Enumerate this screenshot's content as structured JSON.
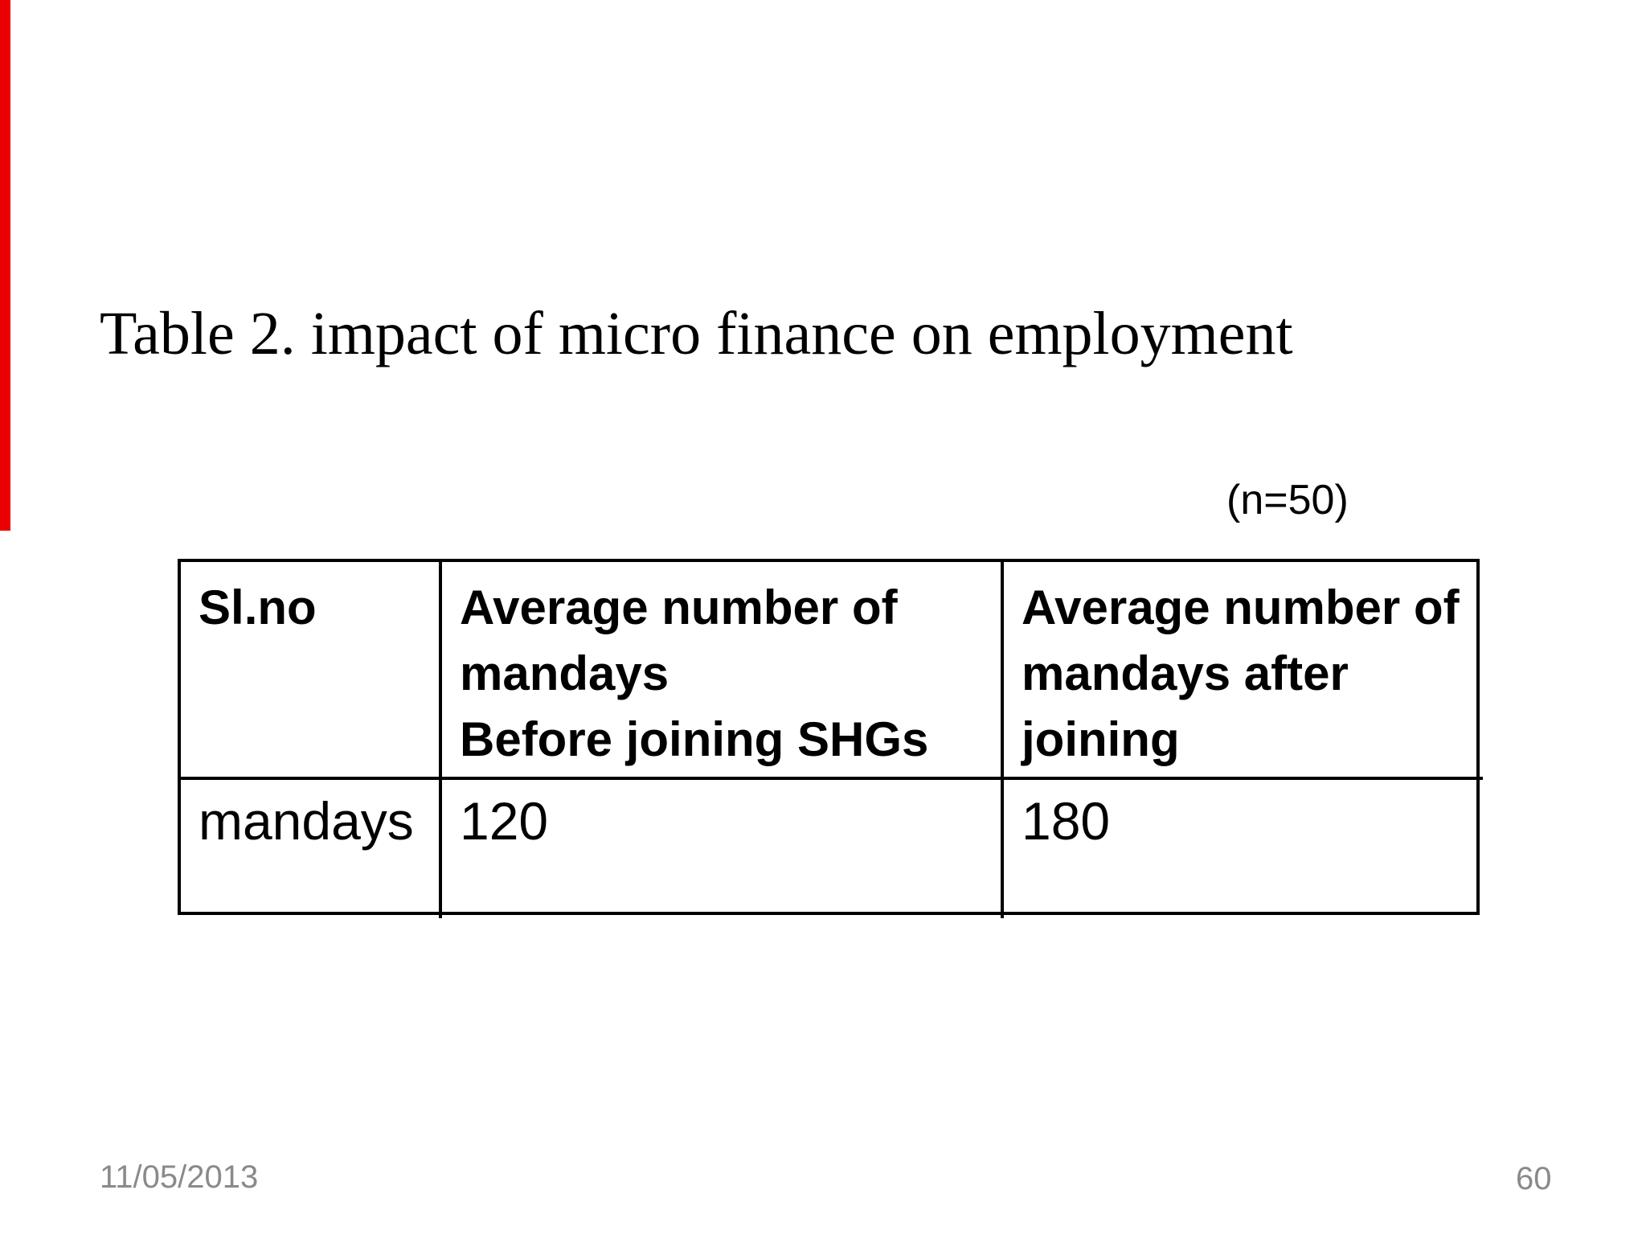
{
  "slide": {
    "title": "Table 2. impact of micro finance on employment",
    "sample_note": "(n=50)",
    "table": {
      "headers": [
        "Sl.no",
        "Average number of\nmandays\nBefore joining SHGs",
        "Average number of\nmandays after\njoining"
      ],
      "rows": [
        [
          "mandays",
          "120",
          "180"
        ]
      ]
    },
    "footer": {
      "date": "11/05/2013",
      "page_number": "60"
    },
    "colors": {
      "accent_bar": "#ea0000",
      "footer_text": "#8a8a8a",
      "border": "#000000"
    }
  }
}
